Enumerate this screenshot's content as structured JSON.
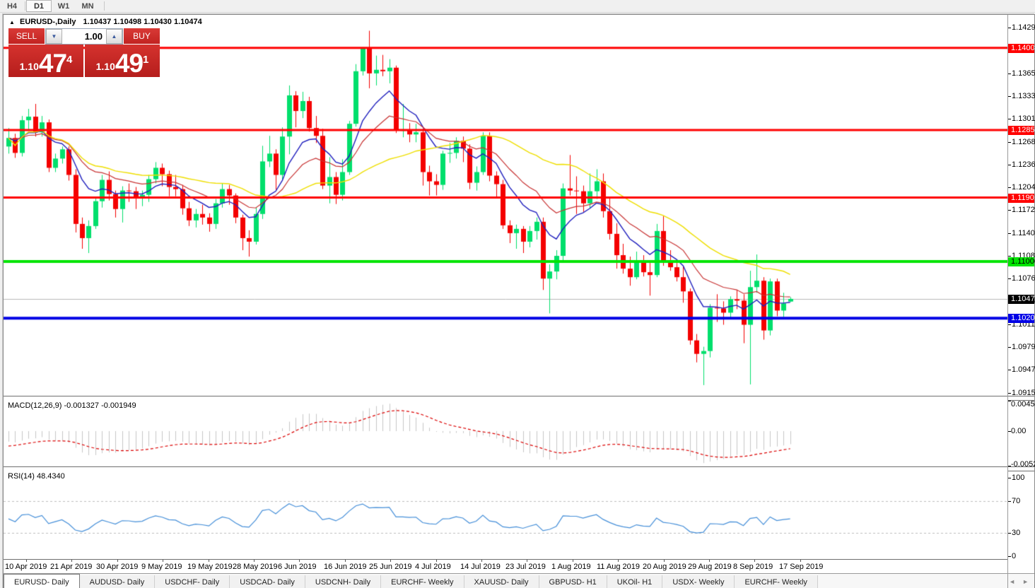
{
  "toolbar": {
    "timeframes": [
      {
        "label": "H4",
        "active": false
      },
      {
        "label": "D1",
        "active": true
      },
      {
        "label": "W1",
        "active": false
      },
      {
        "label": "MN",
        "active": false
      }
    ]
  },
  "chart": {
    "collapse_icon": "▲",
    "title_symbol": "EURUSD-,Daily",
    "ohlc": "1.10437 1.10498 1.10430 1.10474"
  },
  "trade_panel": {
    "sell_label": "SELL",
    "buy_label": "BUY",
    "volume": "1.00",
    "spin_down_icon": "▼",
    "spin_up_icon": "▲",
    "sell_price": {
      "base": "1.10",
      "big": "47",
      "sup": "4"
    },
    "buy_price": {
      "base": "1.10",
      "big": "49",
      "sup": "1"
    }
  },
  "price_axis": {
    "ticks": [
      "1.14295",
      "1.13975",
      "1.13650",
      "1.13330",
      "1.13010",
      "1.12685",
      "1.12365",
      "1.12045",
      "1.11725",
      "1.11400",
      "1.11080",
      "1.10760",
      "1.10440",
      "1.10115",
      "1.09795",
      "1.09475",
      "1.09150"
    ],
    "tick_values": [
      1.14295,
      1.13975,
      1.1365,
      1.1333,
      1.1301,
      1.12685,
      1.12365,
      1.12045,
      1.11725,
      1.114,
      1.1108,
      1.1076,
      1.1044,
      1.10115,
      1.09795,
      1.09475,
      1.0915
    ],
    "levels": [
      {
        "label": "1.14009",
        "price": 1.14009,
        "color": "#FF0000",
        "text_color": "#ffffff",
        "line_width": 3
      },
      {
        "label": "1.12851",
        "price": 1.12851,
        "color": "#FF0000",
        "text_color": "#ffffff",
        "line_width": 3
      },
      {
        "label": "1.11901",
        "price": 1.11901,
        "color": "#FF0000",
        "text_color": "#ffffff",
        "line_width": 3
      },
      {
        "label": "1.11000",
        "price": 1.11,
        "color": "#00E400",
        "text_color": "#000000",
        "line_width": 4
      },
      {
        "label": "1.10201",
        "price": 1.10201,
        "color": "#0000E6",
        "text_color": "#ffffff",
        "line_width": 4
      }
    ],
    "current": {
      "label": "1.10474",
      "price": 1.10474,
      "chip_bg": "#000000",
      "chip_text": "#ffffff",
      "line_color": "#b8b8b8"
    }
  },
  "chart_data": {
    "type": "candlestick",
    "symbol": "EURUSD",
    "timeframe": "Daily",
    "bull_color": "#00DF6C",
    "bear_color": "#F40000",
    "candles": [
      [
        1.1262,
        1.1288,
        1.1252,
        1.1274
      ],
      [
        1.1274,
        1.128,
        1.1246,
        1.1253
      ],
      [
        1.1253,
        1.1305,
        1.1248,
        1.1299
      ],
      [
        1.1299,
        1.1315,
        1.1284,
        1.1304
      ],
      [
        1.1304,
        1.1322,
        1.1276,
        1.1282
      ],
      [
        1.1282,
        1.1305,
        1.1276,
        1.1296
      ],
      [
        1.1296,
        1.13,
        1.1226,
        1.1232
      ],
      [
        1.1232,
        1.1252,
        1.1226,
        1.1245
      ],
      [
        1.1245,
        1.1262,
        1.1238,
        1.1258
      ],
      [
        1.1258,
        1.1262,
        1.1214,
        1.1222
      ],
      [
        1.1222,
        1.123,
        1.1141,
        1.1153
      ],
      [
        1.1153,
        1.1162,
        1.1118,
        1.1133
      ],
      [
        1.1133,
        1.1158,
        1.1112,
        1.115
      ],
      [
        1.115,
        1.119,
        1.1146,
        1.1185
      ],
      [
        1.1185,
        1.1222,
        1.1176,
        1.1215
      ],
      [
        1.1215,
        1.1227,
        1.1186,
        1.1195
      ],
      [
        1.1195,
        1.12,
        1.1162,
        1.1174
      ],
      [
        1.1174,
        1.1206,
        1.1155,
        1.12
      ],
      [
        1.12,
        1.121,
        1.1184,
        1.1199
      ],
      [
        1.1199,
        1.1205,
        1.1174,
        1.119
      ],
      [
        1.119,
        1.12,
        1.1178,
        1.1194
      ],
      [
        1.1194,
        1.1222,
        1.1184,
        1.1216
      ],
      [
        1.1216,
        1.124,
        1.121,
        1.1232
      ],
      [
        1.1232,
        1.1238,
        1.1206,
        1.1223
      ],
      [
        1.1223,
        1.1228,
        1.1192,
        1.1205
      ],
      [
        1.1205,
        1.1222,
        1.1192,
        1.1202
      ],
      [
        1.1202,
        1.1208,
        1.1166,
        1.1175
      ],
      [
        1.1175,
        1.1184,
        1.115,
        1.1158
      ],
      [
        1.1158,
        1.1174,
        1.1148,
        1.1167
      ],
      [
        1.1167,
        1.118,
        1.1152,
        1.1162
      ],
      [
        1.1162,
        1.1168,
        1.1142,
        1.1153
      ],
      [
        1.1153,
        1.1188,
        1.1146,
        1.1182
      ],
      [
        1.1182,
        1.121,
        1.1176,
        1.1202
      ],
      [
        1.1202,
        1.1208,
        1.118,
        1.1193
      ],
      [
        1.1193,
        1.1196,
        1.1154,
        1.1162
      ],
      [
        1.1162,
        1.1166,
        1.1116,
        1.1133
      ],
      [
        1.1133,
        1.1144,
        1.1107,
        1.1128
      ],
      [
        1.1128,
        1.1176,
        1.1124,
        1.1167
      ],
      [
        1.1167,
        1.1263,
        1.116,
        1.1241
      ],
      [
        1.1241,
        1.1277,
        1.1233,
        1.1252
      ],
      [
        1.1252,
        1.1258,
        1.1201,
        1.1222
      ],
      [
        1.1222,
        1.1289,
        1.1215,
        1.1276
      ],
      [
        1.1276,
        1.1348,
        1.1251,
        1.1334
      ],
      [
        1.1334,
        1.134,
        1.1289,
        1.1312
      ],
      [
        1.1312,
        1.1339,
        1.1302,
        1.1326
      ],
      [
        1.1326,
        1.1332,
        1.1283,
        1.1288
      ],
      [
        1.1288,
        1.1305,
        1.1267,
        1.1277
      ],
      [
        1.1277,
        1.1287,
        1.1202,
        1.1207
      ],
      [
        1.1207,
        1.1247,
        1.1182,
        1.1219
      ],
      [
        1.1219,
        1.1226,
        1.1181,
        1.1194
      ],
      [
        1.1194,
        1.1244,
        1.1186,
        1.1226
      ],
      [
        1.1226,
        1.1298,
        1.1222,
        1.1294
      ],
      [
        1.1294,
        1.1378,
        1.129,
        1.1368
      ],
      [
        1.1368,
        1.1402,
        1.1362,
        1.14
      ],
      [
        1.14,
        1.1425,
        1.1344,
        1.1365
      ],
      [
        1.1365,
        1.139,
        1.1348,
        1.137
      ],
      [
        1.137,
        1.1391,
        1.1361,
        1.1368
      ],
      [
        1.1368,
        1.1385,
        1.1351,
        1.1373
      ],
      [
        1.1373,
        1.1376,
        1.1281,
        1.1285
      ],
      [
        1.1285,
        1.1322,
        1.1275,
        1.1285
      ],
      [
        1.1285,
        1.1295,
        1.1268,
        1.1279
      ],
      [
        1.1279,
        1.1294,
        1.1268,
        1.1282
      ],
      [
        1.1282,
        1.1287,
        1.1207,
        1.1226
      ],
      [
        1.1226,
        1.1235,
        1.1193,
        1.1213
      ],
      [
        1.1213,
        1.1223,
        1.1193,
        1.1208
      ],
      [
        1.1208,
        1.1256,
        1.1201,
        1.1252
      ],
      [
        1.1252,
        1.1267,
        1.1239,
        1.1253
      ],
      [
        1.1253,
        1.1275,
        1.1245,
        1.127
      ],
      [
        1.127,
        1.1276,
        1.124,
        1.1259
      ],
      [
        1.1259,
        1.1265,
        1.1202,
        1.1211
      ],
      [
        1.1211,
        1.1234,
        1.12,
        1.1226
      ],
      [
        1.1226,
        1.1282,
        1.1222,
        1.1277
      ],
      [
        1.1277,
        1.1282,
        1.1213,
        1.1221
      ],
      [
        1.1221,
        1.1227,
        1.119,
        1.1209
      ],
      [
        1.1209,
        1.1215,
        1.1146,
        1.1151
      ],
      [
        1.1151,
        1.1158,
        1.1126,
        1.114
      ],
      [
        1.114,
        1.1152,
        1.1118,
        1.1146
      ],
      [
        1.1146,
        1.115,
        1.1112,
        1.1128
      ],
      [
        1.1128,
        1.115,
        1.112,
        1.1143
      ],
      [
        1.1143,
        1.1162,
        1.1131,
        1.1156
      ],
      [
        1.1156,
        1.1162,
        1.106,
        1.1076
      ],
      [
        1.1076,
        1.1096,
        1.1027,
        1.1086
      ],
      [
        1.1086,
        1.1116,
        1.1075,
        1.1108
      ],
      [
        1.1108,
        1.121,
        1.11,
        1.1203
      ],
      [
        1.1203,
        1.125,
        1.1193,
        1.12
      ],
      [
        1.12,
        1.122,
        1.1167,
        1.1199
      ],
      [
        1.1199,
        1.1207,
        1.117,
        1.1182
      ],
      [
        1.1182,
        1.1224,
        1.1175,
        1.1199
      ],
      [
        1.1199,
        1.123,
        1.1188,
        1.1213
      ],
      [
        1.1213,
        1.1224,
        1.1162,
        1.1171
      ],
      [
        1.1171,
        1.1191,
        1.1131,
        1.1139
      ],
      [
        1.1139,
        1.1154,
        1.109,
        1.1109
      ],
      [
        1.1109,
        1.1125,
        1.1083,
        1.109
      ],
      [
        1.109,
        1.1107,
        1.1066,
        1.1078
      ],
      [
        1.1078,
        1.1114,
        1.1075,
        1.1099
      ],
      [
        1.1099,
        1.1109,
        1.1079,
        1.1085
      ],
      [
        1.1085,
        1.1098,
        1.1052,
        1.1081
      ],
      [
        1.1081,
        1.1153,
        1.1078,
        1.1143
      ],
      [
        1.1143,
        1.1164,
        1.1094,
        1.1101
      ],
      [
        1.1101,
        1.1116,
        1.1087,
        1.1092
      ],
      [
        1.1092,
        1.1098,
        1.1072,
        1.1078
      ],
      [
        1.1078,
        1.1094,
        1.1042,
        1.1058
      ],
      [
        1.1058,
        1.1062,
        1.0983,
        1.0989
      ],
      [
        1.0989,
        1.0998,
        1.0958,
        1.097
      ],
      [
        1.097,
        1.098,
        1.0926,
        1.0974
      ],
      [
        1.0974,
        1.104,
        1.0965,
        1.1035
      ],
      [
        1.1035,
        1.1054,
        1.1015,
        1.1034
      ],
      [
        1.1034,
        1.1044,
        1.1011,
        1.1028
      ],
      [
        1.1028,
        1.1051,
        1.102,
        1.1047
      ],
      [
        1.1047,
        1.106,
        1.1033,
        1.1045
      ],
      [
        1.1045,
        1.1054,
        1.0985,
        1.1011
      ],
      [
        1.1011,
        1.1087,
        1.0927,
        1.1064
      ],
      [
        1.1064,
        1.111,
        1.1056,
        1.1073
      ],
      [
        1.1073,
        1.1078,
        1.099,
        1.1003
      ],
      [
        1.1003,
        1.1076,
        1.0996,
        1.1072
      ],
      [
        1.1072,
        1.1076,
        1.1023,
        1.1031
      ],
      [
        1.1031,
        1.1056,
        1.1022,
        1.1041
      ],
      [
        1.10437,
        1.10498,
        1.1043,
        1.10474
      ]
    ],
    "moving_averages": [
      {
        "name": "fast-ma",
        "method": "ema",
        "period": 9,
        "color": "#2020BE",
        "width": 1.4
      },
      {
        "name": "mid-ma",
        "method": "ema",
        "period": 18,
        "color": "#C83232",
        "width": 1.2
      },
      {
        "name": "slow-ma",
        "method": "sma",
        "period": 34,
        "color": "#EFDF00",
        "width": 1.4
      }
    ]
  },
  "macd_panel": {
    "label": "MACD(12,26,9) -0.001327 -0.001949",
    "params": "12,26,9",
    "main_value": "-0.001327",
    "signal_value": "-0.001949",
    "hist_color": "#c6c6c6",
    "signal_color": "#DC0000",
    "axis": [
      {
        "text": "0.004536",
        "v": 0.004536
      },
      {
        "text": "0.00",
        "v": 0
      },
      {
        "text": "-0.005205",
        "v": -0.005205
      }
    ]
  },
  "rsi_panel": {
    "label": "RSI(14) 48.4340",
    "value": "48.4340",
    "line_color": "#458FD9",
    "level_color": "#bdbdbd",
    "levels": [
      70,
      30
    ],
    "axis": [
      {
        "text": "100",
        "v": 100
      },
      {
        "text": "70",
        "v": 70
      },
      {
        "text": "30",
        "v": 30
      },
      {
        "text": "0",
        "v": 0
      }
    ]
  },
  "date_axis": {
    "labels": [
      "10 Apr 2019",
      "21 Apr 2019",
      "30 Apr 2019",
      "9 May 2019",
      "19 May 2019",
      "28 May 2019",
      "6 Jun 2019",
      "16 Jun 2019",
      "25 Jun 2019",
      "4 Jul 2019",
      "14 Jul 2019",
      "23 Jul 2019",
      "1 Aug 2019",
      "11 Aug 2019",
      "20 Aug 2019",
      "29 Aug 2019",
      "8 Sep 2019",
      "17 Sep 2019"
    ]
  },
  "tab_bar": {
    "scroll_left": "◄",
    "scroll_right": "►",
    "tabs": [
      {
        "label": "EURUSD- Daily",
        "active": true
      },
      {
        "label": "AUDUSD- Daily",
        "active": false
      },
      {
        "label": "USDCHF- Daily",
        "active": false
      },
      {
        "label": "USDCAD- Daily",
        "active": false
      },
      {
        "label": "USDCNH- Daily",
        "active": false
      },
      {
        "label": "EURCHF- Weekly",
        "active": false
      },
      {
        "label": "XAUUSD- Daily",
        "active": false
      },
      {
        "label": "GBPUSD- H1",
        "active": false
      },
      {
        "label": "UKOil- H1",
        "active": false
      },
      {
        "label": "USDX- Weekly",
        "active": false
      },
      {
        "label": "EURCHF- Weekly",
        "active": false
      }
    ]
  }
}
